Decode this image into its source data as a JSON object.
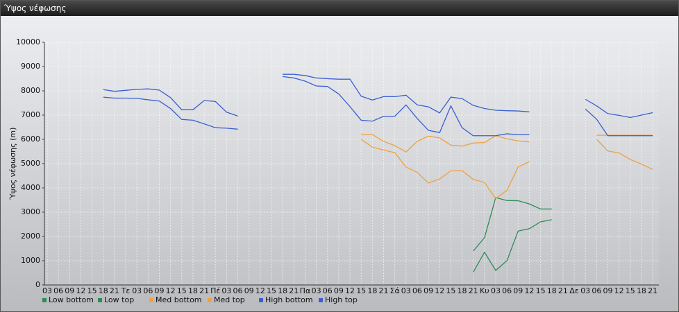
{
  "chart_data": {
    "type": "line",
    "title": "Ύψος νέφωσης",
    "y_label": "Ύψος νέφωσης (m)",
    "categories": [
      "03",
      "06",
      "09",
      "12",
      "15",
      "18",
      "21",
      "Τε",
      "03",
      "06",
      "09",
      "12",
      "15",
      "18",
      "21",
      "Πέ",
      "03",
      "06",
      "09",
      "12",
      "15",
      "18",
      "21",
      "Πα",
      "03",
      "06",
      "09",
      "12",
      "15",
      "18",
      "21",
      "Σά",
      "03",
      "06",
      "09",
      "12",
      "15",
      "18",
      "21",
      "Κυ",
      "03",
      "06",
      "09",
      "12",
      "15",
      "18",
      "21",
      "Δε",
      "03",
      "06",
      "09",
      "12",
      "15",
      "18",
      "21"
    ],
    "ylim": [
      0,
      10000
    ],
    "yticks": [
      0,
      1000,
      2000,
      3000,
      4000,
      5000,
      6000,
      7000,
      8000,
      9000,
      10000
    ],
    "grid": true,
    "series": [
      {
        "name": "Low bottom",
        "color": "#2e8b57",
        "values": [
          null,
          null,
          null,
          null,
          null,
          null,
          null,
          null,
          null,
          null,
          null,
          null,
          null,
          null,
          null,
          null,
          null,
          null,
          null,
          null,
          null,
          null,
          null,
          null,
          null,
          null,
          null,
          null,
          null,
          null,
          null,
          null,
          null,
          null,
          null,
          null,
          null,
          null,
          530,
          1350,
          600,
          1000,
          2220,
          2320,
          2600,
          2690,
          null,
          null,
          null,
          null,
          null,
          null,
          null,
          null,
          null
        ]
      },
      {
        "name": "Low top",
        "color": "#2e8b57",
        "values": [
          null,
          null,
          null,
          null,
          null,
          null,
          null,
          null,
          null,
          null,
          null,
          null,
          null,
          null,
          null,
          null,
          null,
          null,
          null,
          null,
          null,
          null,
          null,
          null,
          null,
          null,
          null,
          null,
          null,
          null,
          null,
          null,
          null,
          null,
          null,
          null,
          null,
          null,
          1400,
          1950,
          3600,
          3480,
          3470,
          3340,
          3130,
          3130,
          null,
          null,
          null,
          null,
          null,
          null,
          null,
          null,
          null
        ]
      },
      {
        "name": "Med bottom",
        "color": "#f0a040",
        "values": [
          null,
          null,
          null,
          null,
          null,
          null,
          null,
          null,
          null,
          null,
          null,
          null,
          null,
          null,
          null,
          null,
          null,
          null,
          null,
          null,
          null,
          null,
          null,
          null,
          null,
          null,
          null,
          null,
          6000,
          5680,
          5560,
          5450,
          4860,
          4640,
          4200,
          4370,
          4700,
          4710,
          4350,
          4220,
          3560,
          3900,
          4860,
          5080,
          null,
          null,
          null,
          null,
          null,
          6000,
          5520,
          5440,
          5170,
          4980,
          4760
        ]
      },
      {
        "name": "Med top",
        "color": "#f0a040",
        "values": [
          null,
          null,
          null,
          null,
          null,
          null,
          null,
          null,
          null,
          null,
          null,
          null,
          null,
          null,
          null,
          null,
          null,
          null,
          null,
          null,
          null,
          null,
          null,
          null,
          null,
          null,
          null,
          null,
          6200,
          6200,
          5920,
          5740,
          5480,
          5920,
          6130,
          6060,
          5760,
          5720,
          5850,
          5870,
          6150,
          6020,
          5940,
          5890,
          null,
          null,
          null,
          null,
          null,
          6170,
          6170,
          6170,
          6170,
          6170,
          6170
        ]
      },
      {
        "name": "High bottom",
        "color": "#3a5fd0",
        "values": [
          null,
          null,
          null,
          null,
          null,
          7740,
          7700,
          7700,
          7690,
          7630,
          7580,
          7270,
          6820,
          6790,
          6640,
          6480,
          6460,
          6420,
          null,
          null,
          null,
          8590,
          8530,
          8400,
          8200,
          8180,
          7870,
          7350,
          6790,
          6750,
          6950,
          6950,
          7420,
          6860,
          6370,
          6280,
          7380,
          6480,
          6150,
          6150,
          6150,
          6230,
          6190,
          6200,
          null,
          null,
          null,
          null,
          7250,
          6830,
          6150,
          6150,
          6150,
          6150,
          6150
        ]
      },
      {
        "name": "High top",
        "color": "#3a5fd0",
        "values": [
          null,
          null,
          null,
          null,
          null,
          8050,
          7980,
          8020,
          8060,
          8080,
          8030,
          7720,
          7220,
          7220,
          7600,
          7560,
          7120,
          6960,
          null,
          null,
          null,
          8680,
          8680,
          8630,
          8530,
          8500,
          8480,
          8480,
          7780,
          7620,
          7760,
          7760,
          7820,
          7420,
          7340,
          7090,
          7740,
          7680,
          7400,
          7270,
          7200,
          7180,
          7170,
          7130,
          null,
          null,
          null,
          null,
          7650,
          7380,
          7060,
          6990,
          6900,
          7000,
          7100
        ]
      }
    ]
  }
}
